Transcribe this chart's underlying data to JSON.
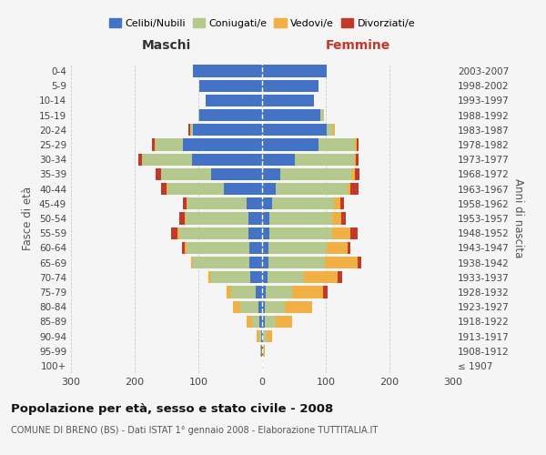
{
  "age_groups": [
    "100+",
    "95-99",
    "90-94",
    "85-89",
    "80-84",
    "75-79",
    "70-74",
    "65-69",
    "60-64",
    "55-59",
    "50-54",
    "45-49",
    "40-44",
    "35-39",
    "30-34",
    "25-29",
    "20-24",
    "15-19",
    "10-14",
    "5-9",
    "0-4"
  ],
  "birth_years": [
    "≤ 1907",
    "1908-1912",
    "1913-1917",
    "1918-1922",
    "1923-1927",
    "1928-1932",
    "1933-1937",
    "1938-1942",
    "1943-1947",
    "1948-1952",
    "1953-1957",
    "1958-1962",
    "1963-1967",
    "1968-1972",
    "1973-1977",
    "1978-1982",
    "1983-1987",
    "1988-1992",
    "1993-1997",
    "1998-2002",
    "2003-2007"
  ],
  "males": {
    "celibi": [
      0,
      1,
      2,
      4,
      6,
      10,
      18,
      20,
      20,
      22,
      22,
      25,
      60,
      80,
      110,
      125,
      108,
      98,
      88,
      98,
      108
    ],
    "coniugati": [
      0,
      1,
      3,
      12,
      28,
      38,
      62,
      88,
      98,
      108,
      98,
      92,
      88,
      78,
      78,
      42,
      5,
      2,
      0,
      0,
      0
    ],
    "vedovi": [
      0,
      1,
      4,
      8,
      12,
      8,
      5,
      3,
      3,
      3,
      2,
      2,
      2,
      1,
      1,
      1,
      0,
      0,
      0,
      0,
      0
    ],
    "divorziati": [
      0,
      0,
      0,
      0,
      0,
      0,
      0,
      0,
      5,
      10,
      8,
      5,
      8,
      8,
      5,
      5,
      2,
      0,
      0,
      0,
      0
    ]
  },
  "females": {
    "nubili": [
      0,
      1,
      2,
      4,
      4,
      5,
      8,
      10,
      10,
      12,
      12,
      15,
      22,
      28,
      52,
      88,
      102,
      92,
      82,
      88,
      102
    ],
    "coniugate": [
      0,
      1,
      5,
      18,
      32,
      42,
      58,
      88,
      92,
      98,
      98,
      98,
      112,
      112,
      92,
      58,
      10,
      5,
      0,
      0,
      0
    ],
    "vedove": [
      0,
      2,
      8,
      25,
      42,
      48,
      52,
      52,
      32,
      28,
      14,
      10,
      5,
      5,
      3,
      2,
      2,
      0,
      0,
      0,
      0
    ],
    "divorziate": [
      0,
      0,
      0,
      0,
      0,
      8,
      8,
      5,
      5,
      12,
      8,
      5,
      12,
      8,
      5,
      3,
      0,
      0,
      0,
      0,
      0
    ]
  },
  "colors": {
    "celibi_nubili": "#4472c4",
    "coniugati": "#b5c98e",
    "vedovi": "#f0b044",
    "divorziati": "#c0392b"
  },
  "title": "Popolazione per età, sesso e stato civile - 2008",
  "subtitle": "COMUNE DI BRENO (BS) - Dati ISTAT 1° gennaio 2008 - Elaborazione TUTTITALIA.IT",
  "xlabel_left": "Maschi",
  "xlabel_right": "Femmine",
  "ylabel_left": "Fasce di età",
  "ylabel_right": "Anni di nascita",
  "xlim": 300,
  "background_color": "#f5f5f5",
  "legend_labels": [
    "Celibi/Nubili",
    "Coniugati/e",
    "Vedovi/e",
    "Divorziati/e"
  ]
}
